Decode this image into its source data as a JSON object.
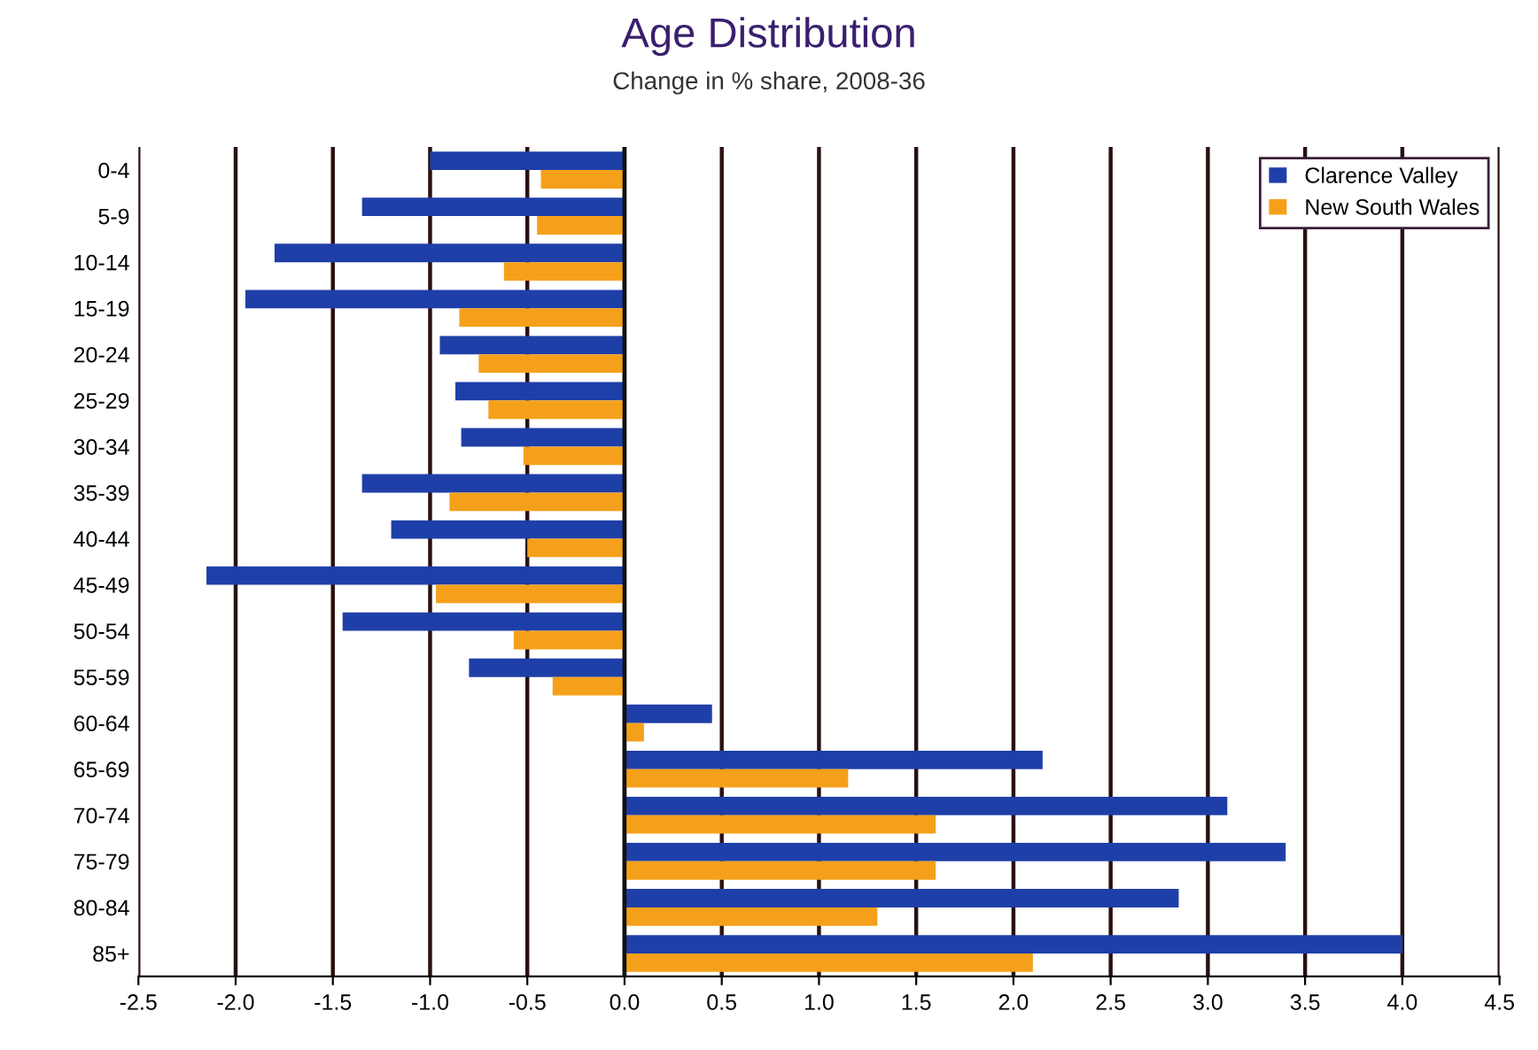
{
  "chart_data": {
    "type": "bar",
    "orientation": "horizontal",
    "title": "Age Distribution",
    "subtitle": "Change in % share, 2008-36",
    "categories": [
      "0-4",
      "5-9",
      "10-14",
      "15-19",
      "20-24",
      "25-29",
      "30-34",
      "35-39",
      "40-44",
      "45-49",
      "50-54",
      "55-59",
      "60-64",
      "65-69",
      "70-74",
      "75-79",
      "80-84",
      "85+"
    ],
    "series": [
      {
        "name": "Clarence Valley",
        "color": "#1f3fa8",
        "values": [
          -1.0,
          -1.35,
          -1.8,
          -1.95,
          -0.95,
          -0.87,
          -0.84,
          -1.35,
          -1.2,
          -2.15,
          -1.45,
          -0.8,
          0.45,
          2.15,
          3.1,
          3.4,
          2.85,
          4.0
        ]
      },
      {
        "name": "New South Wales",
        "color": "#f5a01a",
        "values": [
          -0.43,
          -0.45,
          -0.62,
          -0.85,
          -0.75,
          -0.7,
          -0.52,
          -0.9,
          -0.5,
          -0.97,
          -0.57,
          -0.37,
          0.1,
          1.15,
          1.6,
          1.6,
          1.3,
          2.1
        ]
      }
    ],
    "xlim": [
      -2.5,
      4.5
    ],
    "xticks": [
      {
        "value": -2.5,
        "label": "-2.5"
      },
      {
        "value": -2.0,
        "label": "-2.0"
      },
      {
        "value": -1.5,
        "label": "-1.5"
      },
      {
        "value": -1.0,
        "label": "-1.0"
      },
      {
        "value": -0.5,
        "label": "-0.5"
      },
      {
        "value": 0,
        "label": "0.0"
      },
      {
        "value": 0.5,
        "label": "0.5"
      },
      {
        "value": 1.0,
        "label": "1.0"
      },
      {
        "value": 1.5,
        "label": "1.5"
      },
      {
        "value": 2.0,
        "label": "2.0"
      },
      {
        "value": 2.5,
        "label": "2.5"
      },
      {
        "value": 3.0,
        "label": "3.0"
      },
      {
        "value": 3.5,
        "label": "3.5"
      },
      {
        "value": 4.0,
        "label": "4.0"
      },
      {
        "value": 4.5,
        "label": "4.5"
      }
    ],
    "grid": "x",
    "legend": "top right"
  }
}
